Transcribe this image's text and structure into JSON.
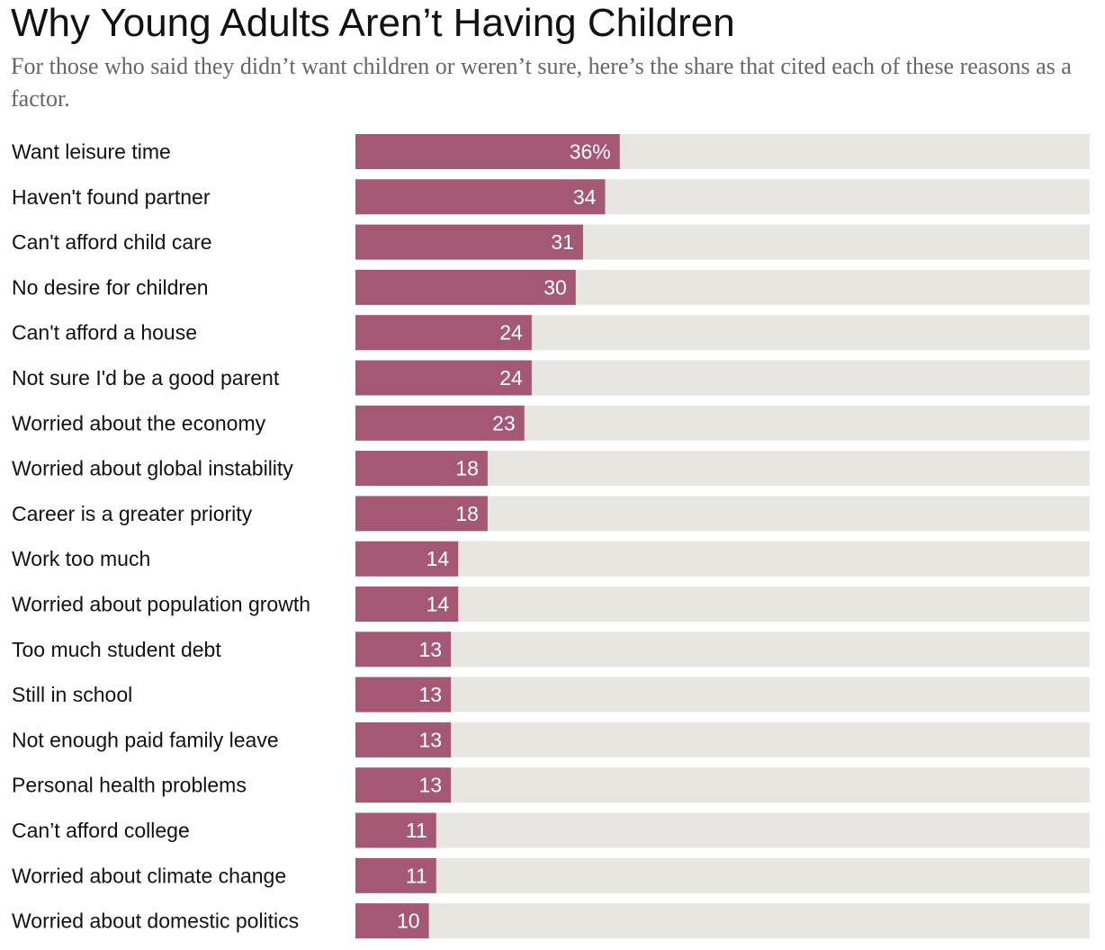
{
  "title": "Why Young Adults Aren’t Having Children",
  "subtitle": "For those who said they didn’t want children or weren’t sure, here’s the share that cited each of these reasons as a factor.",
  "chart_data": {
    "type": "bar",
    "orientation": "horizontal",
    "title": "Why Young Adults Aren’t Having Children",
    "subtitle": "For those who said they didn’t want children or weren’t sure, here’s the share that cited each of these reasons as a factor.",
    "xlabel": "",
    "ylabel": "",
    "unit": "%",
    "xlim": [
      0,
      100
    ],
    "grid": false,
    "legend": "none",
    "categories": [
      "Want leisure time",
      "Haven't found partner",
      "Can't afford child care",
      "No desire for children",
      "Can't afford a house",
      "Not sure I'd be a good parent",
      "Worried about the economy",
      "Worried about global instability",
      "Career is a greater priority",
      "Work too much",
      "Worried about population growth",
      "Too much student debt",
      "Still in school",
      "Not enough paid family leave",
      "Personal health problems",
      "Can’t afford college",
      "Worried about climate change",
      "Worried about domestic politics"
    ],
    "values": [
      36,
      34,
      31,
      30,
      24,
      24,
      23,
      18,
      18,
      14,
      14,
      13,
      13,
      13,
      13,
      11,
      11,
      10
    ],
    "value_labels": [
      "36%",
      "34",
      "31",
      "30",
      "24",
      "24",
      "23",
      "18",
      "18",
      "14",
      "14",
      "13",
      "13",
      "13",
      "13",
      "11",
      "11",
      "10"
    ],
    "colors": {
      "bar": "#a55873",
      "track": "#e8e6e0",
      "label": "#121212",
      "value_label": "#ffffff"
    }
  }
}
